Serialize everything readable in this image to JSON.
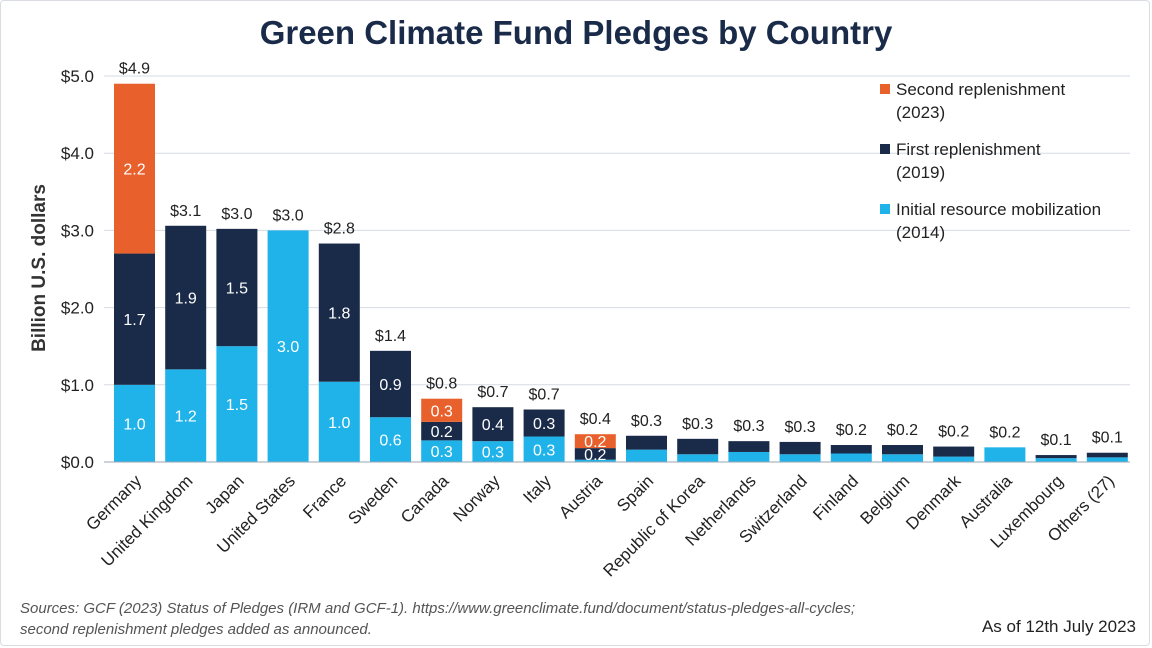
{
  "chart_data": {
    "type": "bar",
    "stacked": true,
    "title": "Green Climate Fund Pledges by Country",
    "ylabel": "Billion U.S. dollars",
    "xlabel": "",
    "ylim": [
      0,
      5
    ],
    "ytick_values": [
      0,
      1,
      2,
      3,
      4,
      5
    ],
    "ytick_labels": [
      "$0.0",
      "$1.0",
      "$2.0",
      "$3.0",
      "$4.0",
      "$5.0"
    ],
    "grid": true,
    "legend_position": "top-right",
    "categories": [
      "Germany",
      "United Kingdom",
      "Japan",
      "United States",
      "France",
      "Sweden",
      "Canada",
      "Norway",
      "Italy",
      "Austria",
      "Spain",
      "Republic of Korea",
      "Netherlands",
      "Switzerland",
      "Finland",
      "Belgium",
      "Denmark",
      "Australia",
      "Luxembourg",
      "Others (27)"
    ],
    "series": [
      {
        "name": "Initial resource mobilization (2014)",
        "color": "#1fb3ea",
        "values": [
          1.0,
          1.2,
          1.5,
          3.0,
          1.04,
          0.58,
          0.28,
          0.27,
          0.33,
          0.03,
          0.16,
          0.1,
          0.13,
          0.1,
          0.11,
          0.1,
          0.07,
          0.19,
          0.05,
          0.06
        ],
        "labels": [
          "1.0",
          "1.2",
          "1.5",
          "3.0",
          "1.0",
          "0.6",
          "0.3",
          "0.3",
          "0.3",
          "",
          "",
          "",
          "",
          "",
          "",
          "",
          "",
          "",
          "",
          ""
        ]
      },
      {
        "name": "First replenishment (2019)",
        "color": "#1a2b4a",
        "values": [
          1.7,
          1.86,
          1.52,
          0,
          1.79,
          0.86,
          0.24,
          0.44,
          0.35,
          0.15,
          0.18,
          0.2,
          0.14,
          0.16,
          0.11,
          0.12,
          0.13,
          0,
          0.04,
          0.06
        ],
        "labels": [
          "1.7",
          "1.9",
          "1.5",
          "",
          "1.8",
          "0.9",
          "0.2",
          "0.4",
          "0.3",
          "0.2",
          "",
          "",
          "",
          "",
          "",
          "",
          "",
          "",
          "",
          ""
        ]
      },
      {
        "name": "Second replenishment (2023)",
        "color": "#e8602c",
        "values": [
          2.2,
          0,
          0,
          0,
          0,
          0,
          0.3,
          0,
          0,
          0.18,
          0,
          0,
          0,
          0,
          0,
          0,
          0,
          0,
          0,
          0
        ],
        "labels": [
          "2.2",
          "",
          "",
          "",
          "",
          "",
          "0.3",
          "",
          "",
          "0.2",
          "",
          "",
          "",
          "",
          "",
          "",
          "",
          "",
          "",
          ""
        ]
      }
    ],
    "totals": [
      "$4.9",
      "$3.1",
      "$3.0",
      "$3.0",
      "$2.8",
      "$1.4",
      "$0.8",
      "$0.7",
      "$0.7",
      "$0.4",
      "$0.3",
      "$0.3",
      "$0.3",
      "$0.3",
      "$0.2",
      "$0.2",
      "$0.2",
      "$0.2",
      "$0.1",
      "$0.1"
    ]
  },
  "legend": [
    {
      "label": "Second replenishment",
      "year": "(2023)",
      "color": "#e8602c"
    },
    {
      "label": "First replenishment",
      "year": "(2019)",
      "color": "#1a2b4a"
    },
    {
      "label": "Initial resource mobilization",
      "year": "(2014)",
      "color": "#1fb3ea"
    }
  ],
  "footer": {
    "source_line1": "Sources: GCF (2023) Status of Pledges (IRM and GCF-1). https://www.greenclimate.fund/document/status-pledges-all-cycles;",
    "source_line2": "second replenishment pledges added as announced.",
    "as_of": "As of 12th July 2023"
  }
}
